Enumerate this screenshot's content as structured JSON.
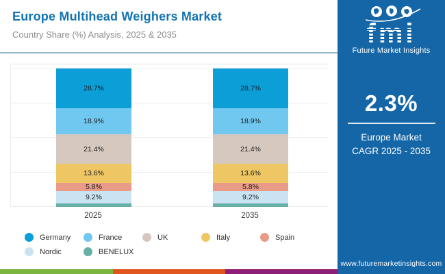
{
  "header": {
    "title": "Europe Multihead Weighers Market",
    "subtitle": "Country Share (%) Analysis, 2025 & 2035"
  },
  "sidebar": {
    "bg_color": "#1566a7",
    "logo": {
      "brand": "fmi",
      "brand_sub": "Future Market Insights"
    },
    "cagr_value": "2.3%",
    "cagr_line1": "Europe Market",
    "cagr_line2": "CAGR 2025 - 2035",
    "website": "www.futuremarketinsights.com"
  },
  "chart_data": {
    "type": "bar",
    "stacked": true,
    "title": "Country Share (%) Analysis, 2025 & 2035",
    "categories": [
      "2025",
      "2035"
    ],
    "series": [
      {
        "name": "Germany",
        "color": "#0b9ed7",
        "values": [
          28.7,
          28.7
        ]
      },
      {
        "name": "France",
        "color": "#70c8f0",
        "values": [
          18.9,
          18.9
        ]
      },
      {
        "name": "UK",
        "color": "#d6c8bf",
        "values": [
          21.4,
          21.4
        ]
      },
      {
        "name": "Italy",
        "color": "#eec764",
        "values": [
          13.6,
          13.6
        ]
      },
      {
        "name": "Spain",
        "color": "#e99b87",
        "values": [
          5.8,
          5.8
        ]
      },
      {
        "name": "Nordic",
        "color": "#c9e3f3",
        "values": [
          9.2,
          9.2
        ]
      },
      {
        "name": "BENELUX",
        "color": "#66b0a8",
        "values": [
          2.4,
          2.4
        ]
      }
    ],
    "ylim": [
      0,
      100
    ],
    "ytick_step": 25,
    "grid": true,
    "legend_position": "bottom",
    "data_label_format": "{value}%",
    "min_value_for_label": 5
  },
  "footer_strips": {
    "colors": [
      "#7cb63e",
      "#e1551f",
      "#8d2076"
    ]
  }
}
